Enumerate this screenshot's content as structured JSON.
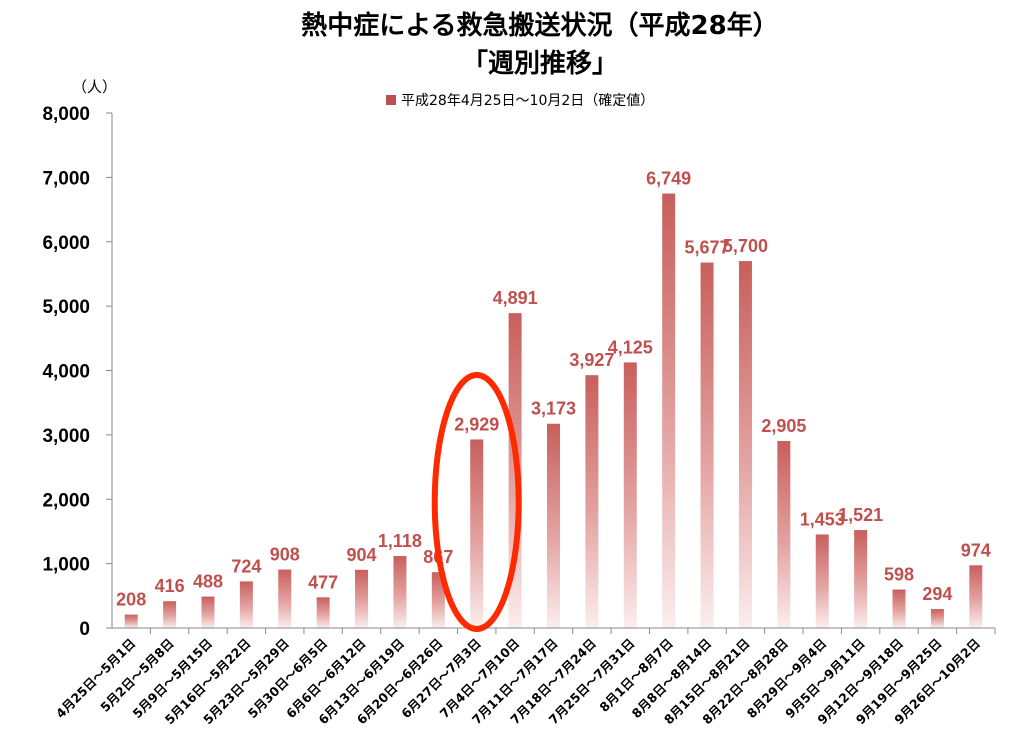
{
  "chart_data": {
    "type": "bar",
    "title": "熱中症による救急搬送状況（平成28年）",
    "subtitle": "「週別推移」",
    "y_unit": "（人）",
    "ylim": [
      0,
      8000
    ],
    "yticks": [
      "0",
      "1,000",
      "2,000",
      "3,000",
      "4,000",
      "5,000",
      "6,000",
      "7,000",
      "8,000"
    ],
    "legend": {
      "position": "top-center"
    },
    "grid": false,
    "bar_color": "#c0504d",
    "highlight_color": "#ff2a00",
    "highlight_index": 9,
    "categories": [
      "4月25日～5月1日",
      "5月2日～5月8日",
      "5月9日～5月15日",
      "5月16日～5月22日",
      "5月23日～5月29日",
      "5月30日～6月5日",
      "6月6日～6月12日",
      "6月13日～6月19日",
      "6月20日～6月26日",
      "6月27日～7月3日",
      "7月4日～7月10日",
      "7月11日～7月17日",
      "7月18日～7月24日",
      "7月25日～7月31日",
      "8月1日～8月7日",
      "8月8日～8月14日",
      "8月15日～8月21日",
      "8月22日～8月28日",
      "8月29日～9月4日",
      "9月5日～9月11日",
      "9月12日～9月18日",
      "9月19日～9月25日",
      "9月26日～10月2日"
    ],
    "series": [
      {
        "name": "平成28年4月25日～10月2日（確定値）",
        "values": [
          208,
          416,
          488,
          724,
          908,
          477,
          904,
          1118,
          867,
          2929,
          4891,
          3173,
          3927,
          4125,
          6749,
          5677,
          5700,
          2905,
          1453,
          1521,
          598,
          294,
          974
        ],
        "labels": [
          "208",
          "416",
          "488",
          "724",
          "908",
          "477",
          "904",
          "1,118",
          "867",
          "2,929",
          "4,891",
          "3,173",
          "3,927",
          "4,125",
          "6,749",
          "5,677",
          "5,700",
          "2,905",
          "1,453",
          "1,521",
          "598",
          "294",
          "974"
        ]
      }
    ]
  }
}
